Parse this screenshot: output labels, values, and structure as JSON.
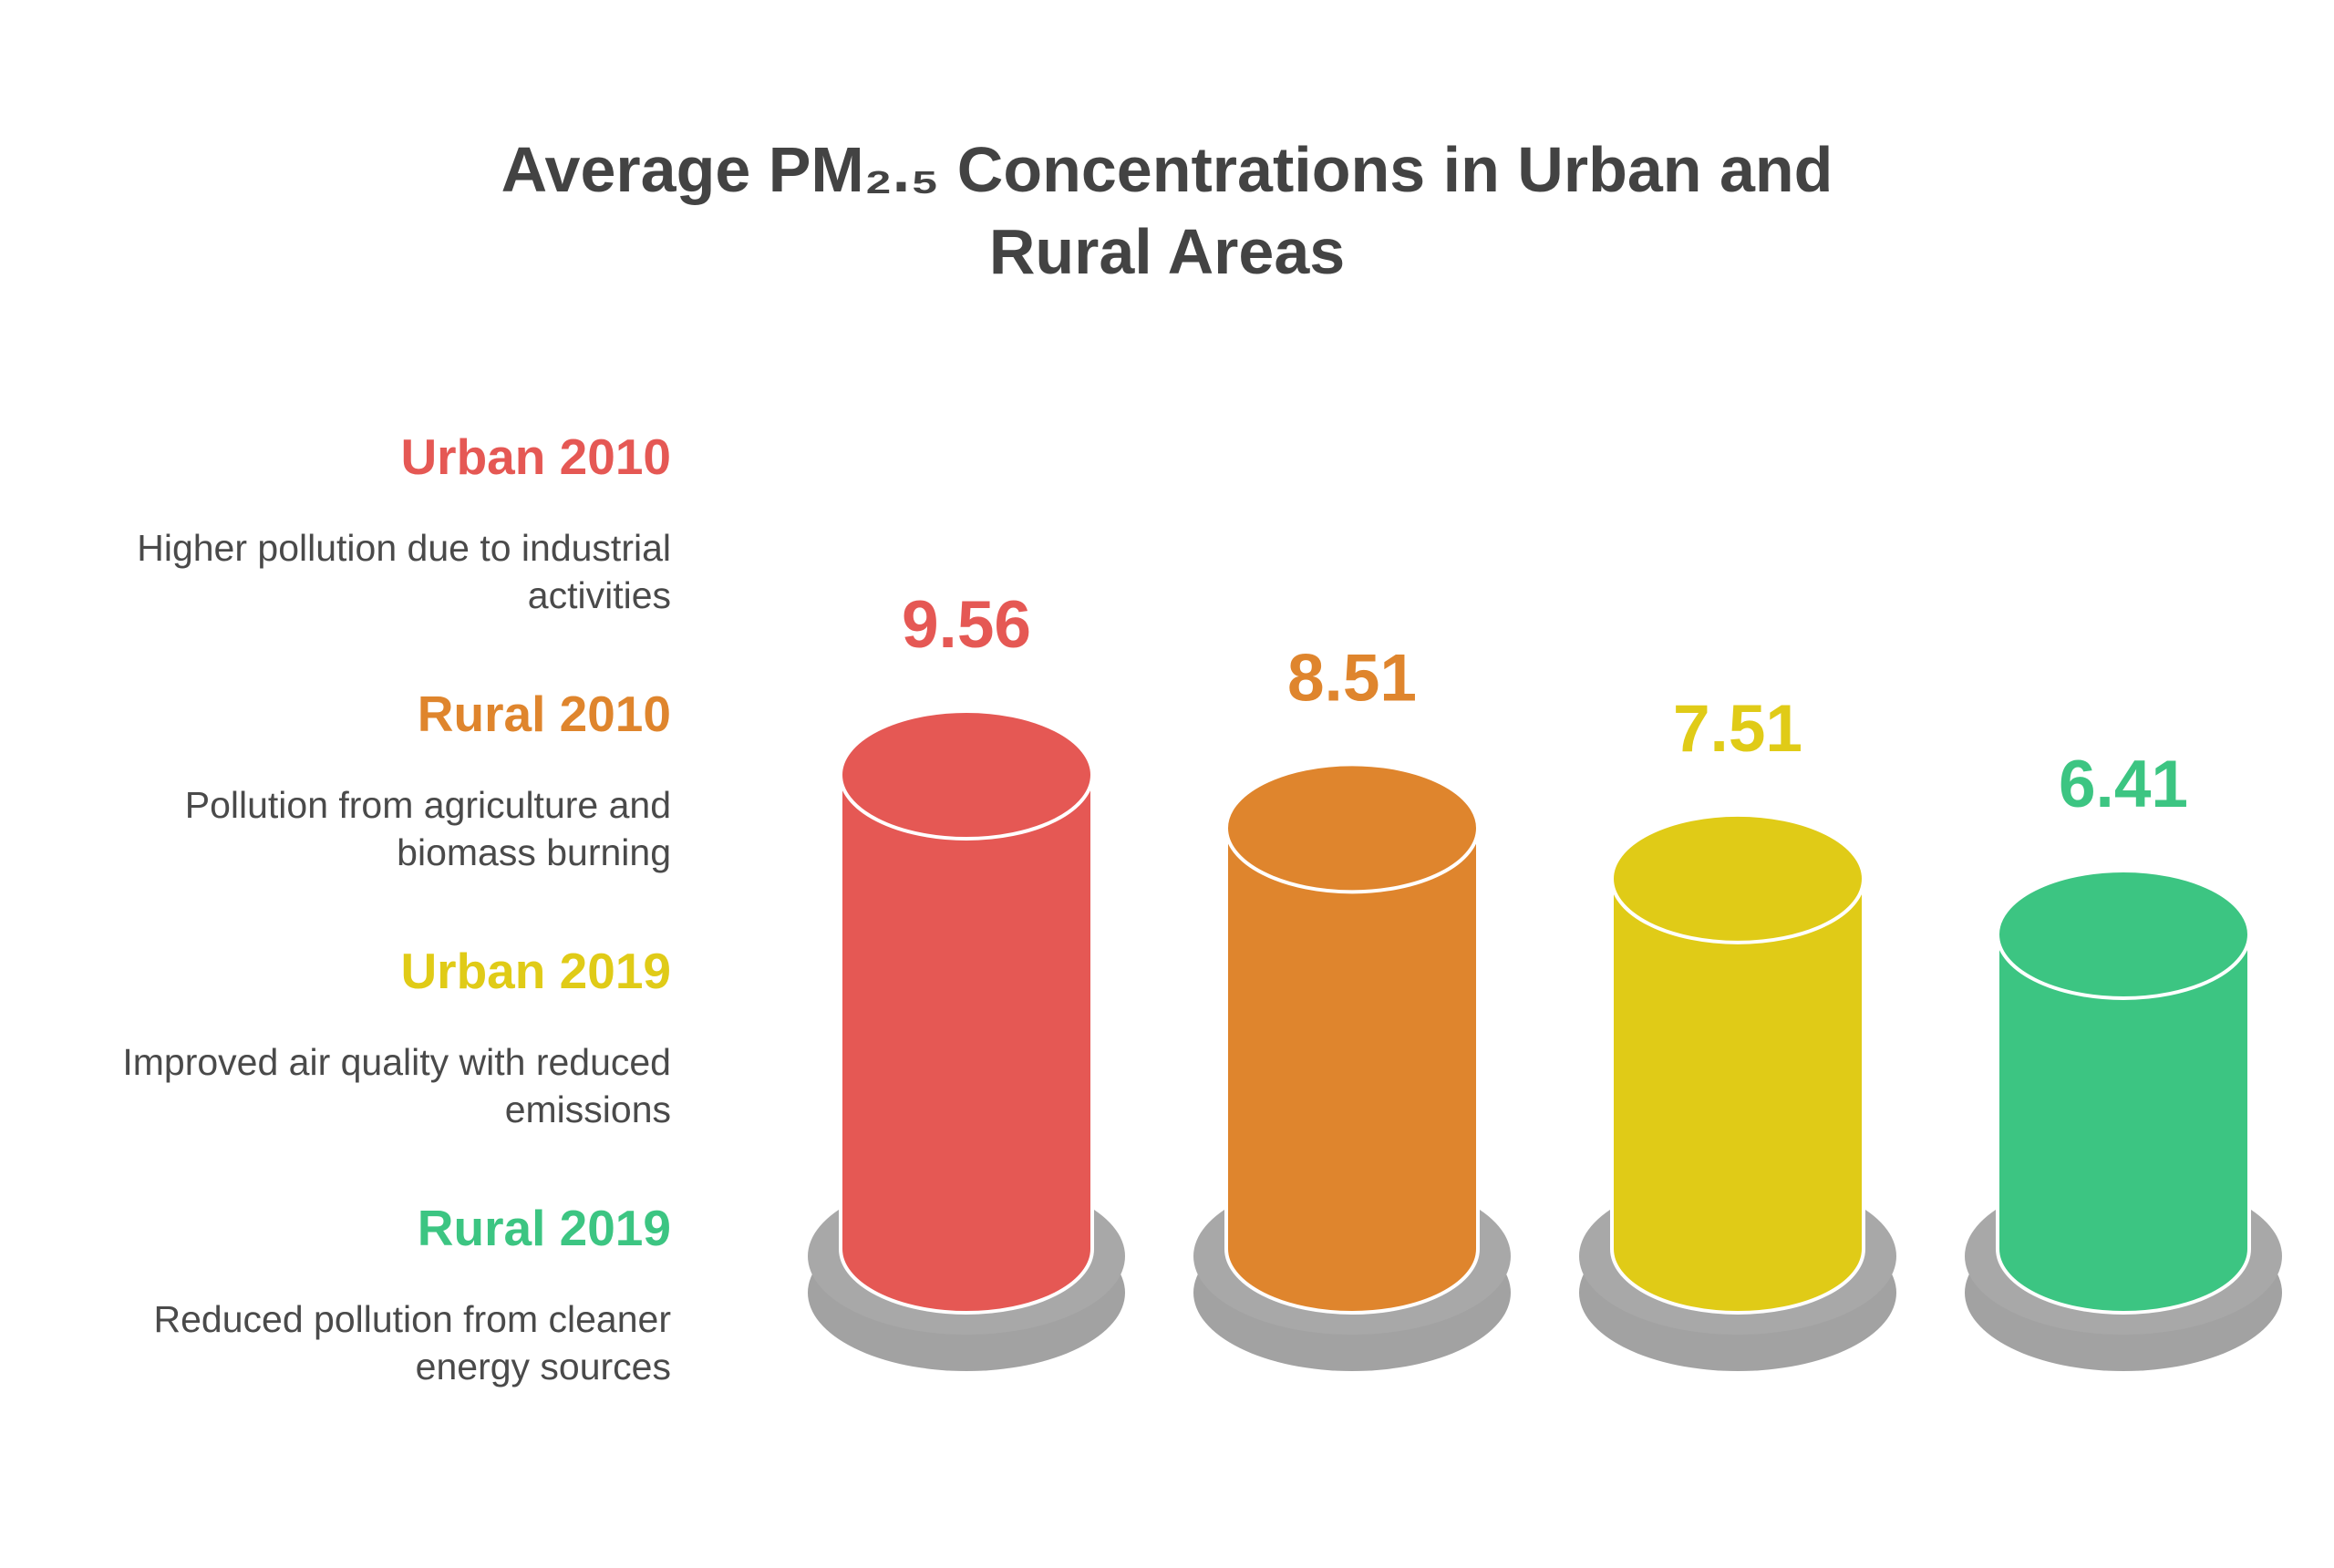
{
  "chart_data": {
    "type": "bar",
    "title_lines": [
      "Average PM₂.₅ Concentrations in Urban and",
      "Rural Areas"
    ],
    "categories": [
      "Urban 2010",
      "Rural 2010",
      "Urban 2019",
      "Rural 2019"
    ],
    "values": [
      9.56,
      8.51,
      7.51,
      6.41
    ],
    "value_labels": [
      "9.56",
      "8.51",
      "7.51",
      "6.41"
    ],
    "descriptions": [
      [
        "Higher pollution due to industrial",
        "activities"
      ],
      [
        "Pollution from agriculture and",
        "biomass burning"
      ],
      [
        "Improved air quality with reduced",
        "emissions"
      ],
      [
        "Reduced pollution from cleaner",
        "energy sources"
      ]
    ],
    "colors": [
      "#e55854",
      "#df852d",
      "#e0cb17",
      "#3cc582"
    ],
    "base_color": "#a8a8a8",
    "text_color": "#434343",
    "desc_color": "#4a4a4a",
    "legend_placement": "left",
    "grid": false
  }
}
